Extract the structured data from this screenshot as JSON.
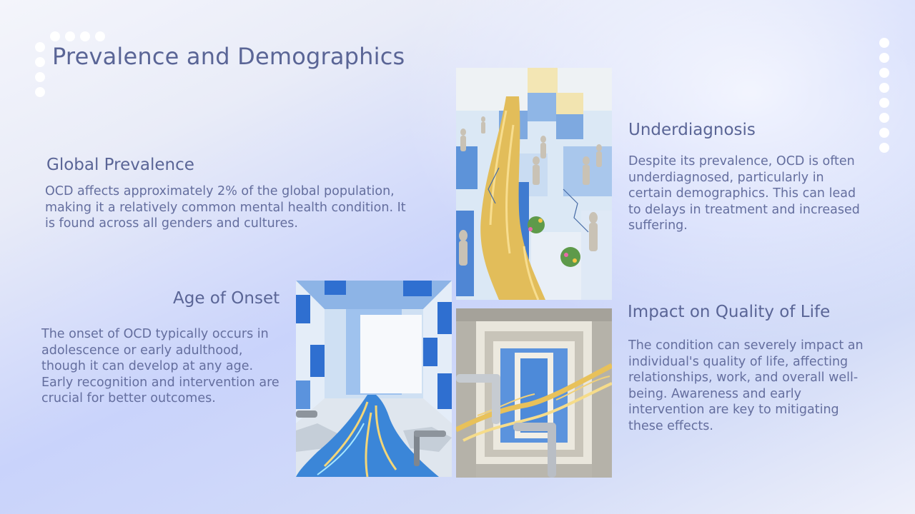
{
  "slide": {
    "title": "Prevalence and Demographics"
  },
  "sections": {
    "global_prevalence": {
      "heading": "Global Prevalence",
      "body": "OCD affects approximately 2% of the global population, making it a relatively common mental health condition. It is found across all genders and cultures."
    },
    "age_of_onset": {
      "heading": "Age of Onset",
      "body": "The onset of OCD typically occurs in adolescence or early adulthood, though it can develop at any age. Early recognition and intervention are crucial for better outcomes."
    },
    "underdiagnosis": {
      "heading": "Underdiagnosis",
      "body": "Despite its prevalence, OCD is often underdiagnosed, particularly in certain demographics. This can lead to delays in treatment and increased suffering."
    },
    "impact": {
      "heading": "Impact on Quality of Life",
      "body": "The condition can severely impact an individual's quality of life, affecting relationships, work, and overall well-being. Awareness and early intervention are key to mitigating these effects."
    }
  },
  "colors": {
    "title_text": "#5a6596",
    "body_text": "#646e9e",
    "tile_blue": "#2f6fd0",
    "tile_light": "#bcd4f0",
    "gold": "#e2bd5a"
  },
  "icons": [
    "decorative-dot-pattern",
    "decorative-dot-column"
  ]
}
